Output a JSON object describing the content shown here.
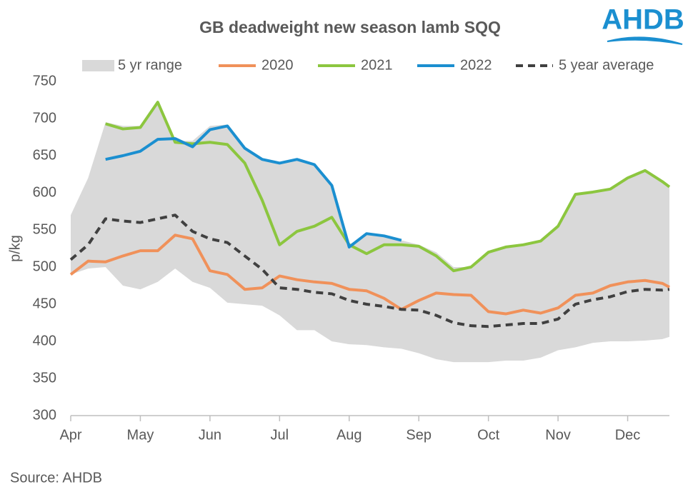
{
  "chart_data": {
    "type": "line",
    "title": "GB deadweight new season lamb SQQ",
    "y_label": "p/kg",
    "source": "Source: AHDB",
    "logo": "AHDB",
    "x": [
      0,
      0.25,
      0.5,
      0.75,
      1,
      1.25,
      1.5,
      1.75,
      2,
      2.25,
      2.5,
      2.75,
      3,
      3.25,
      3.5,
      3.75,
      4,
      4.25,
      4.5,
      4.75,
      5,
      5.25,
      5.5,
      5.75,
      6,
      6.25,
      6.5,
      6.75,
      7,
      7.25,
      7.5,
      7.75,
      8,
      8.25,
      8.5,
      8.6
    ],
    "xlim": [
      0,
      8.6
    ],
    "xticks": [
      {
        "value": 0,
        "label": "Apr"
      },
      {
        "value": 1,
        "label": "May"
      },
      {
        "value": 2,
        "label": "Jun"
      },
      {
        "value": 3,
        "label": "Jul"
      },
      {
        "value": 4,
        "label": "Aug"
      },
      {
        "value": 5,
        "label": "Sep"
      },
      {
        "value": 6,
        "label": "Oct"
      },
      {
        "value": 7,
        "label": "Nov"
      },
      {
        "value": 8,
        "label": "Dec"
      }
    ],
    "ylim": [
      300,
      750
    ],
    "yticks": [
      300,
      350,
      400,
      450,
      500,
      550,
      600,
      650,
      700,
      750
    ],
    "range": {
      "name": "5 yr range",
      "color": "#d9d9d9",
      "high": [
        570,
        620,
        695,
        690,
        690,
        722,
        670,
        670,
        690,
        692,
        660,
        645,
        640,
        645,
        638,
        610,
        530,
        545,
        542,
        536,
        530,
        520,
        500,
        500,
        520,
        527,
        530,
        535,
        555,
        598,
        601,
        605,
        620,
        630,
        615,
        608
      ],
      "low": [
        490,
        498,
        500,
        475,
        470,
        480,
        498,
        480,
        472,
        452,
        450,
        448,
        435,
        415,
        415,
        400,
        396,
        395,
        392,
        390,
        384,
        376,
        372,
        372,
        372,
        374,
        374,
        378,
        388,
        392,
        398,
        400,
        400,
        401,
        403,
        406
      ]
    },
    "series": [
      {
        "name": "2020",
        "color": "#f0915a",
        "dash": false,
        "values": [
          490,
          508,
          507,
          515,
          522,
          522,
          543,
          538,
          495,
          490,
          470,
          472,
          488,
          483,
          480,
          478,
          470,
          468,
          458,
          443,
          455,
          465,
          463,
          462,
          440,
          437,
          442,
          438,
          445,
          462,
          465,
          475,
          480,
          482,
          478,
          473
        ]
      },
      {
        "name": "2021",
        "color": "#8cc63f",
        "dash": false,
        "values": [
          null,
          null,
          693,
          686,
          688,
          722,
          668,
          666,
          668,
          665,
          640,
          590,
          530,
          548,
          555,
          567,
          530,
          518,
          530,
          530,
          528,
          515,
          495,
          500,
          520,
          527,
          530,
          535,
          555,
          598,
          601,
          605,
          620,
          630,
          615,
          608
        ]
      },
      {
        "name": "2022",
        "color": "#1b8fd0",
        "dash": false,
        "values": [
          null,
          null,
          645,
          650,
          656,
          672,
          673,
          662,
          685,
          690,
          660,
          645,
          640,
          645,
          638,
          610,
          527,
          545,
          542,
          536,
          null,
          null,
          null,
          null,
          null,
          null,
          null,
          null,
          null,
          null,
          null,
          null,
          null,
          null,
          null,
          null
        ]
      },
      {
        "name": "5 year average",
        "color": "#404040",
        "dash": true,
        "values": [
          510,
          530,
          565,
          562,
          560,
          565,
          570,
          548,
          538,
          533,
          515,
          497,
          472,
          470,
          466,
          464,
          455,
          450,
          447,
          443,
          442,
          435,
          425,
          421,
          420,
          422,
          424,
          424,
          430,
          450,
          456,
          460,
          467,
          470,
          469,
          470
        ]
      }
    ]
  }
}
